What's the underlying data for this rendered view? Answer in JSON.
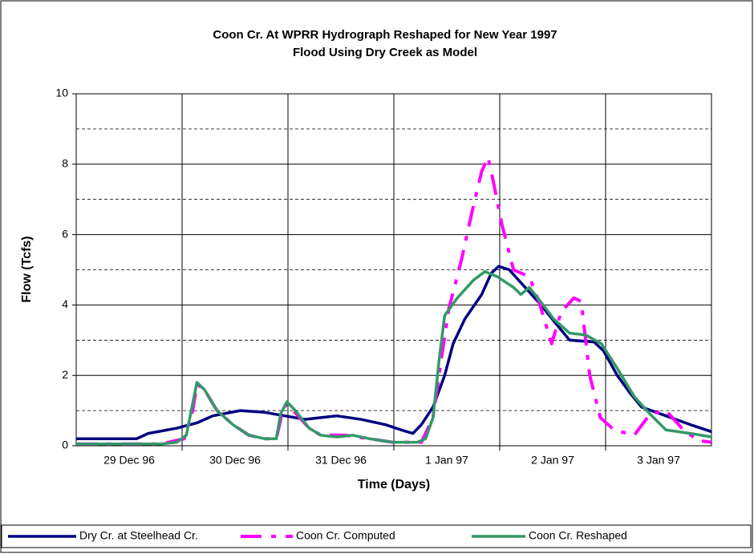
{
  "chart_data": {
    "type": "line",
    "title": [
      "Coon Cr. At WPRR Hydrograph Reshaped for New Year 1997",
      "Flood Using Dry Creek as Model"
    ],
    "xlabel": "Time (Days)",
    "ylabel": "Flow  (Tcfs)",
    "xlim": [
      0,
      6
    ],
    "xticks": [
      {
        "value": 0.5,
        "label": "29 Dec 96"
      },
      {
        "value": 1.5,
        "label": "30 Dec 96"
      },
      {
        "value": 2.5,
        "label": "31 Dec 96"
      },
      {
        "value": 3.5,
        "label": "1 Jan 97"
      },
      {
        "value": 4.5,
        "label": "2 Jan 97"
      },
      {
        "value": 5.5,
        "label": "3 Jan 97"
      }
    ],
    "xgrid": [
      1,
      2,
      3,
      4,
      5
    ],
    "ylim": [
      0,
      10
    ],
    "yticks": [
      0,
      2,
      4,
      6,
      8,
      10
    ],
    "yminor": [
      1,
      3,
      5,
      7,
      9
    ],
    "grid": true,
    "legend": "bottom",
    "series": [
      {
        "name": "Dry Cr. at Steelhead Cr.",
        "color": "#000080",
        "dash": false,
        "x": [
          0,
          0.57,
          0.68,
          0.95,
          1.14,
          1.29,
          1.55,
          1.78,
          1.97,
          2.16,
          2.31,
          2.46,
          2.69,
          2.92,
          3.07,
          3.18,
          3.26,
          3.37,
          3.48,
          3.56,
          3.67,
          3.83,
          3.92,
          3.99,
          4.09,
          4.24,
          4.39,
          4.55,
          4.66,
          4.89,
          4.98,
          5.11,
          5.23,
          5.34,
          5.57,
          5.8,
          6
        ],
        "values": [
          0.2,
          0.2,
          0.35,
          0.5,
          0.65,
          0.85,
          1.0,
          0.95,
          0.85,
          0.75,
          0.8,
          0.85,
          0.75,
          0.6,
          0.45,
          0.35,
          0.6,
          1.1,
          2.0,
          2.9,
          3.6,
          4.3,
          4.9,
          5.1,
          5.0,
          4.5,
          4.0,
          3.4,
          3.0,
          2.95,
          2.7,
          2.0,
          1.5,
          1.1,
          0.85,
          0.6,
          0.4
        ]
      },
      {
        "name": "Coon Cr. Computed",
        "color": "#ff00ff",
        "dash": true,
        "x": [
          0,
          0.8,
          1.02,
          1.1,
          1.14,
          1.21,
          1.33,
          1.48,
          1.63,
          1.78,
          1.89,
          1.95,
          1.99,
          2.08,
          2.2,
          2.31,
          2.54,
          2.77,
          2.99,
          3.26,
          3.37,
          3.45,
          3.52,
          3.64,
          3.75,
          3.83,
          3.89,
          3.94,
          4.02,
          4.13,
          4.28,
          4.37,
          4.49,
          4.58,
          4.7,
          4.77,
          4.85,
          4.95,
          5.08,
          5.27,
          5.42,
          5.57,
          5.72,
          5.87,
          6
        ],
        "values": [
          0.05,
          0.05,
          0.2,
          1.0,
          1.75,
          1.6,
          1.0,
          0.6,
          0.3,
          0.2,
          0.2,
          1.0,
          1.2,
          0.9,
          0.5,
          0.3,
          0.3,
          0.2,
          0.1,
          0.1,
          0.8,
          2.5,
          3.9,
          5.3,
          6.8,
          7.8,
          8.2,
          7.5,
          6.3,
          5.0,
          4.8,
          4.1,
          2.9,
          3.8,
          4.2,
          4.1,
          2.0,
          0.8,
          0.45,
          0.3,
          0.9,
          1.0,
          0.5,
          0.15,
          0.1
        ]
      },
      {
        "name": "Coon Cr. Reshaped",
        "color": "#339966",
        "dash": false,
        "x": [
          0,
          0.8,
          0.95,
          1.04,
          1.1,
          1.14,
          1.21,
          1.33,
          1.48,
          1.63,
          1.78,
          1.89,
          1.93,
          1.99,
          2.07,
          2.2,
          2.31,
          2.46,
          2.61,
          2.77,
          2.99,
          3.22,
          3.3,
          3.37,
          3.43,
          3.48,
          3.6,
          3.75,
          3.86,
          3.98,
          4.13,
          4.2,
          4.28,
          4.36,
          4.51,
          4.66,
          4.81,
          4.96,
          5.11,
          5.27,
          5.42,
          5.57,
          5.8,
          6
        ],
        "values": [
          0.05,
          0.05,
          0.1,
          0.3,
          1.2,
          1.8,
          1.6,
          1.0,
          0.6,
          0.3,
          0.2,
          0.2,
          0.9,
          1.25,
          1.0,
          0.5,
          0.3,
          0.25,
          0.3,
          0.2,
          0.1,
          0.1,
          0.2,
          0.8,
          2.5,
          3.7,
          4.2,
          4.7,
          4.95,
          4.8,
          4.5,
          4.3,
          4.5,
          4.2,
          3.6,
          3.2,
          3.15,
          2.9,
          2.2,
          1.4,
          0.9,
          0.45,
          0.35,
          0.25
        ]
      }
    ]
  }
}
